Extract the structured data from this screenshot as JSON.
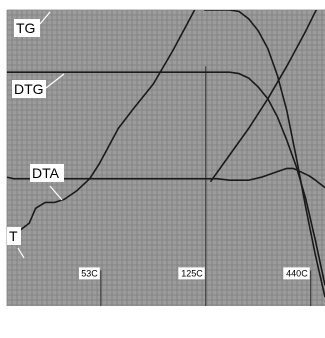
{
  "chart_data": {
    "type": "line",
    "title": "",
    "xlabel": "",
    "ylabel": "",
    "x_range": [
      0,
      100
    ],
    "y_range": [
      0,
      100
    ],
    "grid": true,
    "colors": {
      "background": "#ffffff",
      "plot_bg": "#9c9c9c",
      "grid": "#7f7f7f",
      "line": "#1a1a1a"
    },
    "series": [
      {
        "name": "TG",
        "x": [
          62,
          66,
          70,
          73,
          76,
          79,
          82,
          85,
          88,
          91,
          94,
          97,
          100
        ],
        "y": [
          100,
          100,
          100,
          99.5,
          97,
          93,
          87,
          78,
          66,
          50,
          33,
          17,
          3
        ]
      },
      {
        "name": "DTG",
        "x": [
          0,
          10,
          20,
          30,
          40,
          50,
          60,
          70,
          73,
          76,
          79,
          82,
          85,
          88,
          91,
          94,
          97,
          100
        ],
        "y": [
          79,
          79,
          79,
          79,
          79,
          79,
          79,
          79,
          78.5,
          77,
          74,
          70,
          64,
          56,
          47,
          36,
          22,
          7
        ]
      },
      {
        "name": "DTA",
        "x": [
          0,
          2,
          10,
          20,
          30,
          40,
          50,
          60,
          66,
          70,
          76,
          80,
          84,
          88,
          90,
          92,
          95,
          97,
          100
        ],
        "y": [
          43.5,
          43,
          43,
          43,
          43,
          43,
          43,
          43,
          43,
          42.5,
          42.5,
          43.5,
          45,
          46.5,
          46.5,
          45.5,
          44,
          42.5,
          40
        ]
      },
      {
        "name": "T",
        "x": [
          0,
          4,
          7,
          9,
          12,
          15,
          18,
          22,
          26,
          29,
          31,
          35,
          40,
          46,
          52,
          56,
          59,
          61
        ],
        "y": [
          25,
          25.5,
          28,
          33,
          35,
          35,
          36,
          39,
          43,
          48,
          52,
          60,
          67,
          75,
          86,
          94,
          100,
          104
        ]
      },
      {
        "name": "",
        "x": [
          64,
          70,
          76,
          82,
          88,
          94,
          100
        ],
        "y": [
          42,
          51,
          60,
          70,
          81,
          93,
          106
        ]
      }
    ],
    "curve_labels": [
      "TG",
      "DTG",
      "DTA",
      "T"
    ],
    "temperature_markers": [
      {
        "label": "53C",
        "x": 29.5
      },
      {
        "label": "125C",
        "x": 62.5
      },
      {
        "label": "440C",
        "x": 95.5
      }
    ]
  }
}
